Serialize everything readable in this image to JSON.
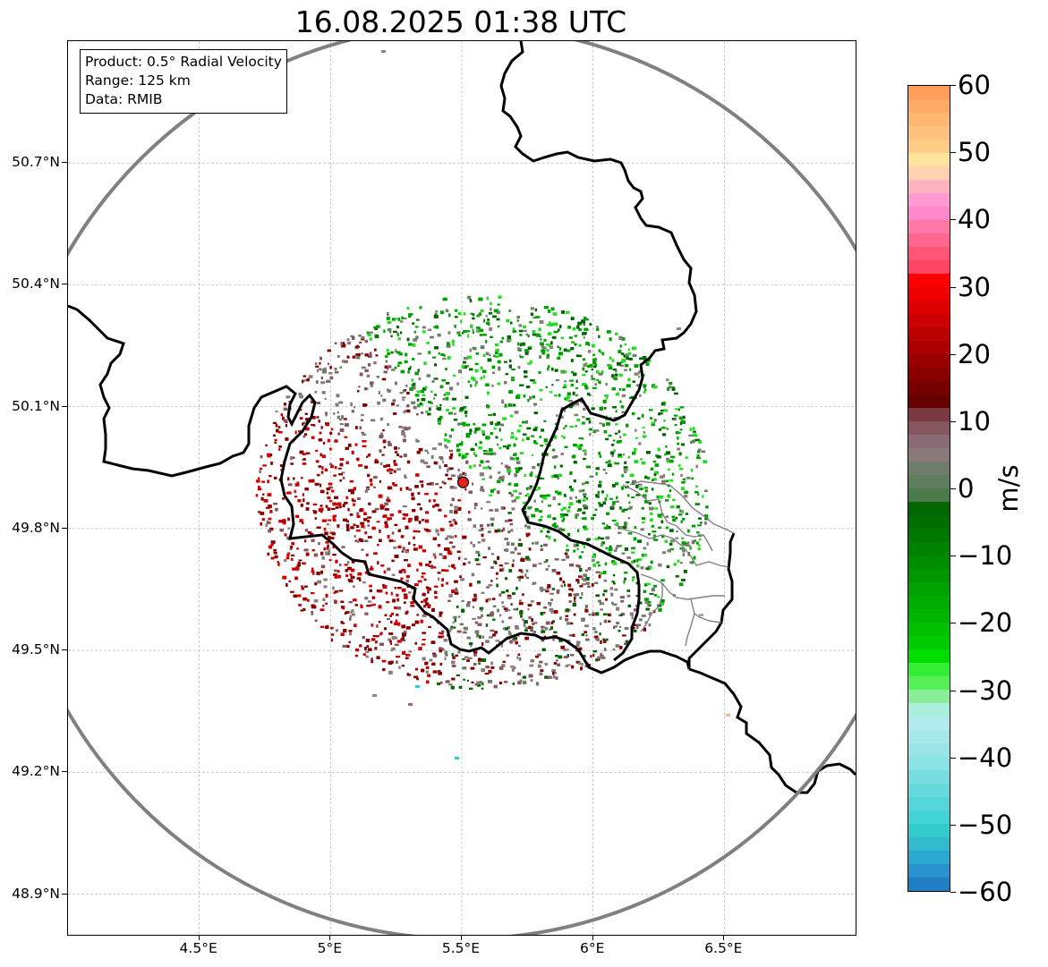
{
  "title": "16.08.2025 01:38 UTC",
  "info_box": {
    "product": "Product: 0.5° Radial Velocity",
    "range": "Range: 125 km",
    "data": "Data: RMIB"
  },
  "map_extent": {
    "lon_min": 4.0,
    "lon_max": 7.0,
    "lat_min": 48.8,
    "lat_max": 51.0
  },
  "radar_site": {
    "lon": 5.505,
    "lat": 49.914,
    "color": "#e32020"
  },
  "range_ring": {
    "radius_km": 125,
    "color": "#808080"
  },
  "lat_ticks": [
    {
      "value": 50.7,
      "label": "50.7°N"
    },
    {
      "value": 50.4,
      "label": "50.4°N"
    },
    {
      "value": 50.1,
      "label": "50.1°N"
    },
    {
      "value": 49.8,
      "label": "49.8°N"
    },
    {
      "value": 49.5,
      "label": "49.5°N"
    },
    {
      "value": 49.2,
      "label": "49.2°N"
    },
    {
      "value": 48.9,
      "label": "48.9°N"
    }
  ],
  "lon_ticks": [
    {
      "value": 4.5,
      "label": "4.5°E"
    },
    {
      "value": 5.0,
      "label": "5°E"
    },
    {
      "value": 5.5,
      "label": "5.5°E"
    },
    {
      "value": 6.0,
      "label": "6°E"
    },
    {
      "value": 6.5,
      "label": "6.5°E"
    }
  ],
  "colorbar": {
    "unit": "m/s",
    "min": -60,
    "max": 60,
    "ticks": [
      {
        "value": 60,
        "label": "60"
      },
      {
        "value": 50,
        "label": "50"
      },
      {
        "value": 40,
        "label": "40"
      },
      {
        "value": 30,
        "label": "30"
      },
      {
        "value": 20,
        "label": "20"
      },
      {
        "value": 10,
        "label": "10"
      },
      {
        "value": 0,
        "label": "0"
      },
      {
        "value": -10,
        "label": "−10"
      },
      {
        "value": -20,
        "label": "−20"
      },
      {
        "value": -30,
        "label": "−30"
      },
      {
        "value": -40,
        "label": "−40"
      },
      {
        "value": -50,
        "label": "−50"
      },
      {
        "value": -60,
        "label": "−60"
      }
    ],
    "colors_top_to_bottom": [
      "#ff9e5a",
      "#ffaa66",
      "#ffb872",
      "#ffc27e",
      "#ffcc88",
      "#ffe49e",
      "#ffd3b0",
      "#ffb3bf",
      "#ff9ad2",
      "#ff88cc",
      "#ff78a8",
      "#ff6690",
      "#ff5577",
      "#ff4466",
      "#ff0000",
      "#ee0000",
      "#dd0000",
      "#cc0000",
      "#bb0000",
      "#aa0000",
      "#990000",
      "#880000",
      "#770000",
      "#660000",
      "#7a3a3f",
      "#855560",
      "#8a6a75",
      "#8a7a7a",
      "#6f7c6c",
      "#5e7d5e",
      "#4d7a4d",
      "#006600",
      "#006e00",
      "#007700",
      "#008200",
      "#008c00",
      "#009600",
      "#00a100",
      "#00ab00",
      "#00b500",
      "#00c000",
      "#00cb00",
      "#00dd00",
      "#33ee33",
      "#55f055",
      "#88ee99",
      "#aaeedd",
      "#b3eaf0",
      "#a6e7ea",
      "#99e4e6",
      "#8ae2e4",
      "#77dde0",
      "#66d9dd",
      "#55d5d8",
      "#44d3d6",
      "#33cccc",
      "#33bbcc",
      "#2aa8d0",
      "#2a92cc",
      "#1f7fc2"
    ]
  },
  "colors": {
    "green_dark": "#006600",
    "green_mid": "#00a000",
    "green_light": "#22dd22",
    "gray": "#8a7a7a",
    "gray_green": "#6f7c6c",
    "red_dark": "#880000",
    "red_mid": "#cc0000",
    "mauve": "#855560",
    "border": "#000000",
    "admin_border": "#808080"
  }
}
